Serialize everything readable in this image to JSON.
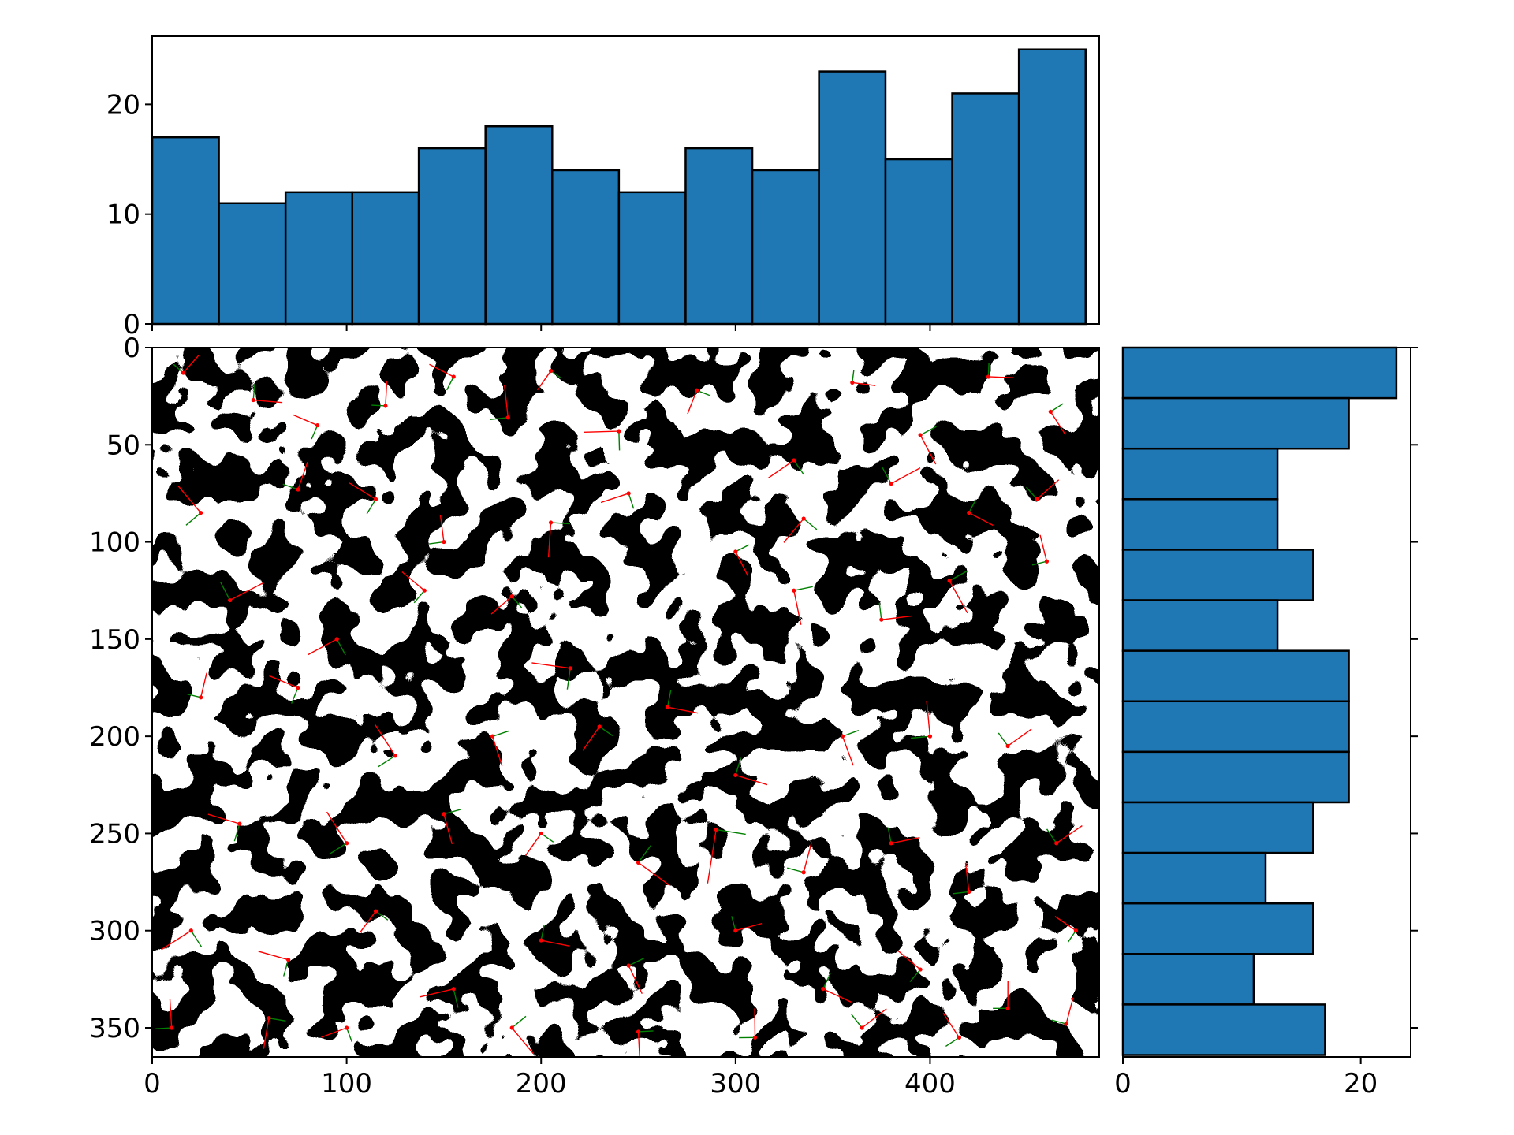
{
  "chart_data": [
    {
      "type": "bar",
      "role": "top-marginal-histogram",
      "orientation": "vertical",
      "bin_edges": [
        0,
        34.3,
        68.6,
        102.9,
        137.1,
        171.4,
        205.7,
        240,
        274.3,
        308.6,
        342.9,
        377.1,
        411.4,
        445.7,
        480
      ],
      "values": [
        17,
        11,
        12,
        12,
        16,
        18,
        14,
        12,
        16,
        14,
        23,
        15,
        21,
        25
      ],
      "xlim": [
        0,
        487
      ],
      "ylim": [
        0,
        26.2
      ],
      "y_ticks": [
        0,
        10,
        20
      ],
      "y_tick_labels": [
        "0",
        "10",
        "20"
      ],
      "x_ticks": [
        0,
        100,
        200,
        300,
        400
      ],
      "bar_color": "#1f77b4",
      "edge_color": "#000000"
    },
    {
      "type": "bar",
      "role": "right-marginal-histogram",
      "orientation": "horizontal",
      "bin_edges": [
        0,
        26,
        52,
        78,
        104,
        130,
        156,
        182,
        208,
        234,
        260,
        286,
        312,
        338,
        364
      ],
      "values": [
        23,
        19,
        13,
        13,
        16,
        13,
        19,
        19,
        19,
        16,
        12,
        16,
        11,
        17
      ],
      "xlim": [
        0,
        24.2
      ],
      "ylim": [
        365,
        0
      ],
      "x_ticks": [
        0,
        20
      ],
      "x_tick_labels": [
        "0",
        "20"
      ],
      "y_ticks": [
        0,
        50,
        100,
        150,
        200,
        250,
        300,
        350
      ],
      "bar_color": "#1f77b4",
      "edge_color": "#000000"
    },
    {
      "type": "image",
      "role": "main-binary-image-with-cell-orientation-overlay",
      "xlim": [
        0,
        487
      ],
      "ylim": [
        365,
        0
      ],
      "x_ticks": [
        0,
        100,
        200,
        300,
        400
      ],
      "x_tick_labels": [
        "0",
        "100",
        "200",
        "300",
        "400"
      ],
      "y_ticks": [
        0,
        50,
        100,
        150,
        200,
        250,
        300,
        350
      ],
      "y_tick_labels": [
        "0",
        "50",
        "100",
        "150",
        "200",
        "250",
        "300",
        "350"
      ],
      "major_axis_color": "#ff0000",
      "minor_axis_color": "#008000",
      "centroid_color": "#ff0000",
      "cells": [
        [
          16,
          13,
          12,
          0
        ],
        [
          52,
          27,
          15,
          1
        ],
        [
          85,
          40,
          14,
          2
        ],
        [
          120,
          30,
          13,
          3
        ],
        [
          155,
          15,
          14,
          0
        ],
        [
          183,
          36,
          17,
          1
        ],
        [
          205,
          12,
          12,
          2
        ],
        [
          240,
          43,
          18,
          3
        ],
        [
          280,
          22,
          13,
          0
        ],
        [
          330,
          58,
          16,
          1
        ],
        [
          360,
          18,
          12,
          2
        ],
        [
          395,
          45,
          17,
          3
        ],
        [
          430,
          15,
          13,
          0
        ],
        [
          462,
          33,
          14,
          1
        ],
        [
          25,
          85,
          18,
          2
        ],
        [
          75,
          73,
          15,
          3
        ],
        [
          115,
          78,
          16,
          0
        ],
        [
          150,
          100,
          14,
          1
        ],
        [
          205,
          90,
          18,
          2
        ],
        [
          245,
          75,
          15,
          3
        ],
        [
          300,
          105,
          14,
          0
        ],
        [
          335,
          88,
          16,
          1
        ],
        [
          380,
          70,
          17,
          2
        ],
        [
          420,
          85,
          14,
          3
        ],
        [
          455,
          78,
          15,
          0
        ],
        [
          40,
          130,
          19,
          1
        ],
        [
          95,
          150,
          17,
          2
        ],
        [
          140,
          125,
          15,
          3
        ],
        [
          185,
          128,
          14,
          0
        ],
        [
          215,
          165,
          20,
          1
        ],
        [
          265,
          185,
          16,
          2
        ],
        [
          330,
          125,
          18,
          3
        ],
        [
          375,
          140,
          16,
          0
        ],
        [
          410,
          120,
          19,
          1
        ],
        [
          460,
          110,
          14,
          2
        ],
        [
          25,
          180,
          13,
          3
        ],
        [
          75,
          175,
          16,
          0
        ],
        [
          125,
          210,
          19,
          1
        ],
        [
          175,
          200,
          16,
          2
        ],
        [
          230,
          195,
          15,
          3
        ],
        [
          300,
          220,
          17,
          0
        ],
        [
          355,
          200,
          16,
          1
        ],
        [
          400,
          200,
          18,
          2
        ],
        [
          440,
          205,
          15,
          3
        ],
        [
          45,
          245,
          17,
          0
        ],
        [
          100,
          255,
          19,
          1
        ],
        [
          150,
          240,
          16,
          2
        ],
        [
          200,
          250,
          14,
          3
        ],
        [
          250,
          265,
          20,
          0
        ],
        [
          290,
          248,
          28,
          1
        ],
        [
          335,
          270,
          16,
          2
        ],
        [
          380,
          255,
          15,
          3
        ],
        [
          420,
          280,
          15,
          0
        ],
        [
          465,
          255,
          16,
          1
        ],
        [
          20,
          300,
          18,
          2
        ],
        [
          70,
          315,
          16,
          3
        ],
        [
          115,
          290,
          14,
          0
        ],
        [
          155,
          330,
          18,
          1
        ],
        [
          200,
          305,
          15,
          2
        ],
        [
          245,
          318,
          16,
          3
        ],
        [
          300,
          300,
          14,
          0
        ],
        [
          345,
          330,
          16,
          1
        ],
        [
          395,
          320,
          15,
          2
        ],
        [
          440,
          340,
          14,
          3
        ],
        [
          475,
          300,
          13,
          0
        ],
        [
          10,
          350,
          15,
          1
        ],
        [
          60,
          345,
          16,
          2
        ],
        [
          100,
          350,
          14,
          3
        ],
        [
          185,
          350,
          17,
          0
        ],
        [
          250,
          352,
          14,
          1
        ],
        [
          310,
          355,
          15,
          2
        ],
        [
          365,
          350,
          16,
          3
        ],
        [
          415,
          355,
          15,
          0
        ],
        [
          470,
          348,
          14,
          1
        ]
      ],
      "cell_fields": [
        "x_centroid",
        "y_centroid",
        "major_half_length",
        "orientation_variant"
      ]
    }
  ]
}
